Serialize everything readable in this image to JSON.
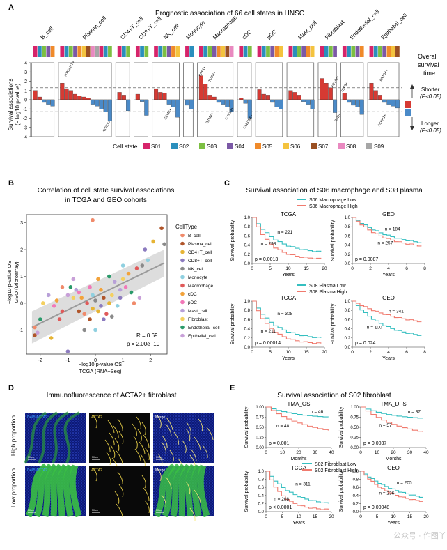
{
  "panelA": {
    "letter": "A",
    "title": "Prognostic association of 66 cell states in HNSC",
    "cell_types": [
      "B_cell",
      "Plasma_cell",
      "CD4+T_cell",
      "CD8+T_cell",
      "NK_cell",
      "Monocyte",
      "Macrophage",
      "cDC",
      "pDC",
      "Mast_cell",
      "Fibroblast",
      "Endothelial_cell",
      "Epithelial_cell"
    ],
    "ylabel": "Survival associations\n(− log10 p-value)",
    "yticks": [
      "4",
      "3",
      "2",
      "1",
      "0",
      "-1",
      "-2",
      "-3",
      "-4"
    ],
    "overall_label": [
      "Overall",
      "survival",
      "time"
    ],
    "shorter": "Shorter",
    "shorter_p": "(P<0.05)",
    "longer": "Longer",
    "longer_p": "(P<0.05)",
    "legend_title": "Cell state",
    "states": [
      "S01",
      "S02",
      "S03",
      "S04",
      "S05",
      "S06",
      "S07",
      "S08",
      "S09"
    ],
    "state_colors": [
      "#d6246a",
      "#2a8fbd",
      "#7cbf42",
      "#7b59a6",
      "#f08a2a",
      "#f4c33e",
      "#9a4f22",
      "#e989c0",
      "#a6a6a6"
    ],
    "gene_labels": [
      "ITPGM1T+",
      "ATF6T+",
      "GZMK+",
      "GZMB+",
      "SPP1+",
      "TGFB+",
      "CXCL9+",
      "CLEC9A+",
      "ACTA2+",
      "TGFB+",
      "CFD+",
      "ACKR1+",
      "KRT5A+"
    ]
  },
  "panelB": {
    "letter": "B",
    "title": [
      "Correlation of cell state survival associations",
      "in TCGA and GEO cohorts"
    ],
    "xlabel": [
      "−log10 p-value OS",
      "TCGA (RNA−Seq)"
    ],
    "ylabel": [
      "−log10 p-value OS",
      "GEO (Microarray)"
    ],
    "r": "R = 0.69",
    "p": "p = 2.00e−10",
    "legend_title": "CellType",
    "celltypes": [
      "B_cell",
      "Plasma_cell",
      "CD4+T_cell",
      "CD8+T_cell",
      "NK_cell",
      "Monocyte",
      "Macrophage",
      "cDC",
      "pDC",
      "Mast_cell",
      "Fibroblast",
      "Endothelial_cell",
      "Epithelial_cell"
    ],
    "celltype_colors": [
      "#f08a6a",
      "#b0552a",
      "#e6b434",
      "#8c7bbf",
      "#8a8a8a",
      "#8fd0e0",
      "#e05a5a",
      "#f2a23a",
      "#f278b8",
      "#b8a0d8",
      "#f4d060",
      "#2a9a6a",
      "#c8a0d8"
    ],
    "xticks": [
      "-2",
      "-1",
      "0",
      "1",
      "2"
    ],
    "yticks": [
      "-1",
      "0",
      "1",
      "2",
      "3"
    ]
  },
  "panelC": {
    "letter": "C",
    "title": "Survival association of S06 macrophage and S08 plasma",
    "legend1": [
      "S06 Macrophage Low",
      "S06 Macrophage High"
    ],
    "legend2": [
      "S08 Plasma Low",
      "S08 Plasma High"
    ],
    "plots": [
      {
        "cohort": "TCGA",
        "n_low": "n = 221",
        "n_high": "n = 298",
        "p": "p = 0.0013"
      },
      {
        "cohort": "GEO",
        "n_low": "n = 184",
        "n_high": "n = 257",
        "p": "p = 0.0087"
      },
      {
        "cohort": "TCGA",
        "n_low": "n = 308",
        "n_high": "n = 211",
        "p": "p = 0.00014"
      },
      {
        "cohort": "GEO",
        "n_low": "n = 341",
        "n_high": "n = 100",
        "p": "p = 0.024"
      }
    ],
    "ylabel": "Survival probability",
    "xlabel": "Years",
    "tcga_xticks": [
      "0",
      "5",
      "10",
      "15",
      "20"
    ],
    "geo_xticks": [
      "0",
      "2",
      "4",
      "6",
      "8"
    ],
    "yticks": [
      "1.0",
      "0.8",
      "0.6",
      "0.4",
      "0.2",
      "0.0"
    ]
  },
  "panelD": {
    "letter": "D",
    "title": "Immunofluorescence of ACTA2+ fibroblast",
    "rows": [
      "High proportion",
      "Low proportion"
    ],
    "cols": [
      "DAPI/ACTA2",
      "ACTA2",
      "Merge"
    ],
    "scale": "50μm"
  },
  "panelE": {
    "letter": "E",
    "title": "Survival association of S02 fibroblast",
    "legend": [
      "S02 Fibroblast Low",
      "S02 Fibroblast High"
    ],
    "plots": [
      {
        "cohort": "TMA_OS",
        "n_low": "n = 46",
        "n_high": "n = 48",
        "p": "p = 0.001",
        "xlabel": "Months"
      },
      {
        "cohort": "TMA_DFS",
        "n_low": "n = 37",
        "n_high": "n = 57",
        "p": "p = 0.0037",
        "xlabel": "Months"
      },
      {
        "cohort": "TCGA",
        "n_low": "n = 311",
        "n_high": "n = 208",
        "p": "p < 0.0001",
        "xlabel": "Years"
      },
      {
        "cohort": "GEO",
        "n_low": "n = 205",
        "n_high": "n = 236",
        "p": "p = 0.00048",
        "xlabel": "Years"
      }
    ],
    "ylabel": "Survival probability",
    "tma_yticks": [
      "1.00",
      "0.75",
      "0.50",
      "0.25",
      "0.00"
    ],
    "tma_xticks": [
      "0",
      "10",
      "20",
      "30",
      "40"
    ],
    "tcga_xticks": [
      "0",
      "5",
      "10",
      "15",
      "20"
    ],
    "geo_xticks": [
      "0",
      "5",
      "10",
      "15",
      "20"
    ],
    "yticks": [
      "1.0",
      "0.8",
      "0.6",
      "0.4",
      "0.2",
      "0.0"
    ],
    "watermark": "公众号 · 作图丫"
  },
  "chart_data": [
    {
      "type": "bar",
      "title": "Prognostic association of 66 cell states in HNSC",
      "ylabel": "Survival associations (− log10 p-value)",
      "ylim": [
        -4,
        4
      ],
      "series": [
        {
          "name": "B_cell",
          "values": [
            1.0,
            0.3,
            -0.3,
            -0.5,
            -0.7
          ]
        },
        {
          "name": "Plasma_cell",
          "values": [
            1.8,
            1.2,
            1.0,
            0.6,
            0.4,
            0.3,
            0.2,
            -0.5,
            -0.7,
            -1.0,
            -1.3,
            -2.3
          ]
        },
        {
          "name": "CD4+T_cell",
          "values": [
            0.8,
            0.5,
            -1.2
          ]
        },
        {
          "name": "CD8+T_cell",
          "values": [
            0.6,
            -0.2,
            -1.7
          ]
        },
        {
          "name": "NK_cell",
          "values": [
            1.2,
            0.8,
            0.7,
            -0.5,
            -0.8,
            -1.9
          ]
        },
        {
          "name": "Monocyte",
          "values": [
            -0.6,
            -1.0
          ]
        },
        {
          "name": "Macrophage",
          "values": [
            2.6,
            1.7,
            0.5,
            0.3,
            -0.3,
            -0.5,
            -0.8,
            -1.3
          ]
        },
        {
          "name": "cDC",
          "values": [
            0.2,
            -0.4,
            -2.0
          ]
        },
        {
          "name": "pDC",
          "values": [
            1.1,
            0.6,
            0.5,
            -0.3,
            -0.8,
            -1.0
          ]
        },
        {
          "name": "Mast_cell",
          "values": [
            1.0,
            0.8,
            0.5,
            -0.2,
            -0.5,
            -1.0
          ]
        },
        {
          "name": "Fibroblast",
          "values": [
            2.3,
            1.8,
            1.3,
            -1.4
          ]
        },
        {
          "name": "Endothelial_cell",
          "values": [
            0.7,
            -0.3,
            -0.6,
            -0.8,
            -1.6
          ]
        },
        {
          "name": "Epithelial_cell",
          "values": [
            1.8,
            1.0,
            0.5,
            -0.3,
            -0.5,
            -0.7,
            -0.9
          ]
        }
      ]
    },
    {
      "type": "scatter",
      "title": "Correlation of cell state survival associations in TCGA and GEO cohorts",
      "xlabel": "−log10 p-value OS TCGA (RNA−Seq)",
      "ylabel": "−log10 p-value OS GEO (Microarray)",
      "xlim": [
        -2.5,
        2.6
      ],
      "ylim": [
        -1.9,
        3.3
      ],
      "points": [
        [
          -0.1,
          3.1
        ],
        [
          2.4,
          2.8
        ],
        [
          2.1,
          2.3
        ],
        [
          1.8,
          2.0
        ],
        [
          2.5,
          2.2
        ],
        [
          1.0,
          1.4
        ],
        [
          1.5,
          1.3
        ],
        [
          1.2,
          1.1
        ],
        [
          1.1,
          0.6
        ],
        [
          0.9,
          0.5
        ],
        [
          0.6,
          0.3
        ],
        [
          1.3,
          0.4
        ],
        [
          1.6,
          0.2
        ],
        [
          1.4,
          0.0
        ],
        [
          0.3,
          0.2
        ],
        [
          0.5,
          0.0
        ],
        [
          0.2,
          -0.1
        ],
        [
          0.0,
          0.1
        ],
        [
          -0.1,
          0.3
        ],
        [
          -0.3,
          0.0
        ],
        [
          -0.5,
          0.2
        ],
        [
          -0.6,
          0.4
        ],
        [
          -0.7,
          0.5
        ],
        [
          -0.8,
          0.2
        ],
        [
          -0.9,
          0.6
        ],
        [
          -1.0,
          0.3
        ],
        [
          -0.4,
          -0.4
        ],
        [
          -0.2,
          -0.6
        ],
        [
          0.1,
          -0.3
        ],
        [
          0.3,
          -0.6
        ],
        [
          0.6,
          -0.5
        ],
        [
          0.8,
          -0.1
        ],
        [
          -1.2,
          -0.3
        ],
        [
          -1.4,
          0.1
        ],
        [
          -1.5,
          -0.1
        ],
        [
          -1.7,
          0.3
        ],
        [
          -1.9,
          0.0
        ],
        [
          -2.0,
          -0.6
        ],
        [
          -2.1,
          -1.1
        ],
        [
          -2.2,
          -0.9
        ],
        [
          -2.2,
          -1.2
        ],
        [
          -1.6,
          -1.3
        ],
        [
          -1.0,
          -1.8
        ],
        [
          -0.4,
          -1.0
        ],
        [
          0.0,
          -1.0
        ],
        [
          0.4,
          -0.4
        ],
        [
          0.2,
          0.5
        ],
        [
          -0.2,
          0.6
        ],
        [
          0.7,
          0.8
        ],
        [
          1.0,
          0.9
        ],
        [
          0.5,
          1.0
        ],
        [
          -0.8,
          0.9
        ],
        [
          -1.2,
          0.6
        ],
        [
          -0.6,
          -0.3
        ],
        [
          -0.1,
          -0.2
        ],
        [
          0.9,
          0.2
        ],
        [
          1.7,
          1.4
        ],
        [
          1.9,
          1.6
        ],
        [
          -1.3,
          -0.6
        ],
        [
          0.1,
          0.9
        ]
      ]
    }
  ]
}
